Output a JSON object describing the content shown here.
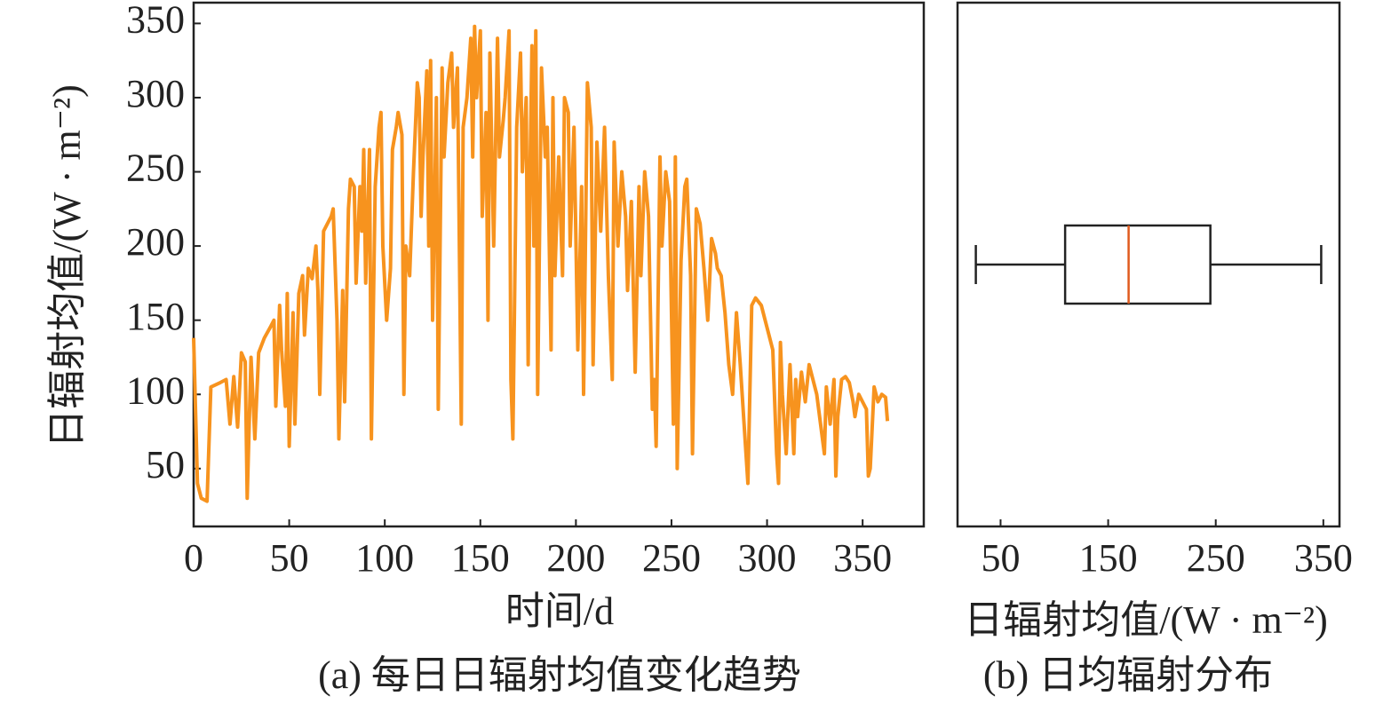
{
  "chart_data": [
    {
      "type": "line",
      "title": "(a) 每日日辐射均值变化趋势",
      "xlabel": "时间/d",
      "ylabel": "日辐射均值/(W · m⁻²)",
      "xlim": [
        0,
        382
      ],
      "ylim": [
        11,
        364
      ],
      "xticks": [
        0,
        50,
        100,
        150,
        200,
        250,
        300,
        350
      ],
      "yticks": [
        50,
        100,
        150,
        200,
        250,
        300,
        350
      ],
      "color": "#f7931e",
      "x": [
        0,
        2,
        4,
        7,
        9,
        14,
        17,
        19,
        21,
        23,
        25,
        27,
        28,
        30,
        32,
        34,
        37,
        40,
        42,
        43,
        45,
        46,
        48,
        49,
        50,
        52,
        53,
        55,
        57,
        58,
        60,
        62,
        64,
        65,
        66,
        68,
        70,
        72,
        73,
        75,
        76,
        78,
        79,
        81,
        82,
        84,
        85,
        87,
        88,
        89,
        90,
        92,
        93,
        95,
        97,
        98,
        99,
        101,
        103,
        104,
        106,
        107,
        109,
        110,
        111,
        113,
        115,
        117,
        118,
        119,
        120,
        122,
        123,
        124,
        125,
        127,
        128,
        130,
        131,
        133,
        135,
        136,
        138,
        140,
        141,
        143,
        145,
        146,
        147,
        148,
        150,
        151,
        153,
        154,
        155,
        157,
        159,
        160,
        162,
        163,
        165,
        166,
        167,
        169,
        171,
        172,
        174,
        175,
        176,
        177,
        178,
        179,
        180,
        182,
        184,
        185,
        187,
        188,
        189,
        191,
        193,
        194,
        196,
        197,
        199,
        201,
        203,
        204,
        206,
        208,
        209,
        211,
        213,
        215,
        217,
        219,
        220,
        222,
        224,
        226,
        227,
        229,
        231,
        233,
        234,
        236,
        238,
        240,
        241,
        242,
        244,
        245,
        247,
        249,
        251,
        252,
        253,
        255,
        257,
        258,
        260,
        261,
        263,
        265,
        267,
        269,
        271,
        273,
        274,
        276,
        278,
        280,
        282,
        284,
        286,
        288,
        290,
        292,
        294,
        297,
        299,
        301,
        303,
        305,
        306,
        307,
        308,
        310,
        311,
        312,
        314,
        315,
        316,
        318,
        320,
        322,
        324,
        326,
        328,
        330,
        331,
        333,
        335,
        336,
        337,
        339,
        341,
        343,
        345,
        346,
        348,
        350,
        352,
        353,
        354,
        356,
        358,
        360,
        362,
        363
      ],
      "values": [
        138,
        40,
        30,
        28,
        105,
        108,
        110,
        80,
        112,
        78,
        128,
        122,
        30,
        125,
        70,
        128,
        138,
        145,
        150,
        92,
        160,
        130,
        92,
        168,
        65,
        155,
        80,
        168,
        180,
        140,
        185,
        178,
        200,
        170,
        100,
        210,
        215,
        220,
        225,
        150,
        70,
        170,
        95,
        225,
        245,
        240,
        175,
        240,
        210,
        265,
        175,
        265,
        70,
        240,
        280,
        290,
        200,
        150,
        185,
        265,
        280,
        290,
        275,
        100,
        200,
        180,
        250,
        310,
        300,
        220,
        260,
        318,
        200,
        325,
        150,
        300,
        90,
        320,
        260,
        310,
        330,
        280,
        320,
        80,
        280,
        300,
        340,
        260,
        348,
        300,
        345,
        220,
        290,
        150,
        330,
        200,
        340,
        260,
        285,
        300,
        345,
        110,
        70,
        280,
        330,
        250,
        300,
        120,
        250,
        335,
        200,
        345,
        100,
        320,
        260,
        280,
        130,
        300,
        180,
        260,
        180,
        300,
        290,
        200,
        280,
        130,
        240,
        100,
        310,
        280,
        120,
        270,
        210,
        280,
        180,
        110,
        270,
        200,
        250,
        220,
        170,
        230,
        115,
        240,
        180,
        250,
        220,
        90,
        110,
        65,
        260,
        200,
        250,
        230,
        80,
        260,
        50,
        190,
        240,
        245,
        180,
        60,
        225,
        215,
        185,
        150,
        205,
        195,
        185,
        180,
        155,
        120,
        100,
        155,
        120,
        80,
        40,
        160,
        165,
        160,
        150,
        140,
        130,
        60,
        40,
        135,
        100,
        60,
        90,
        120,
        60,
        110,
        85,
        115,
        95,
        120,
        110,
        100,
        80,
        60,
        105,
        80,
        110,
        45,
        85,
        110,
        112,
        108,
        95,
        85,
        100,
        95,
        90,
        45,
        50,
        105,
        95,
        100,
        98,
        82
      ]
    },
    {
      "type": "box",
      "title": "(b) 日均辐射分布",
      "xlabel": "日辐射均值/(W · m⁻²)",
      "xlim": [
        10,
        365
      ],
      "xticks": [
        50,
        150,
        250,
        350
      ],
      "whisker_low": 27,
      "q1": 110,
      "median": 169,
      "q3": 245,
      "whisker_high": 348,
      "color": "#222222",
      "median_color": "#e05a1e"
    }
  ]
}
